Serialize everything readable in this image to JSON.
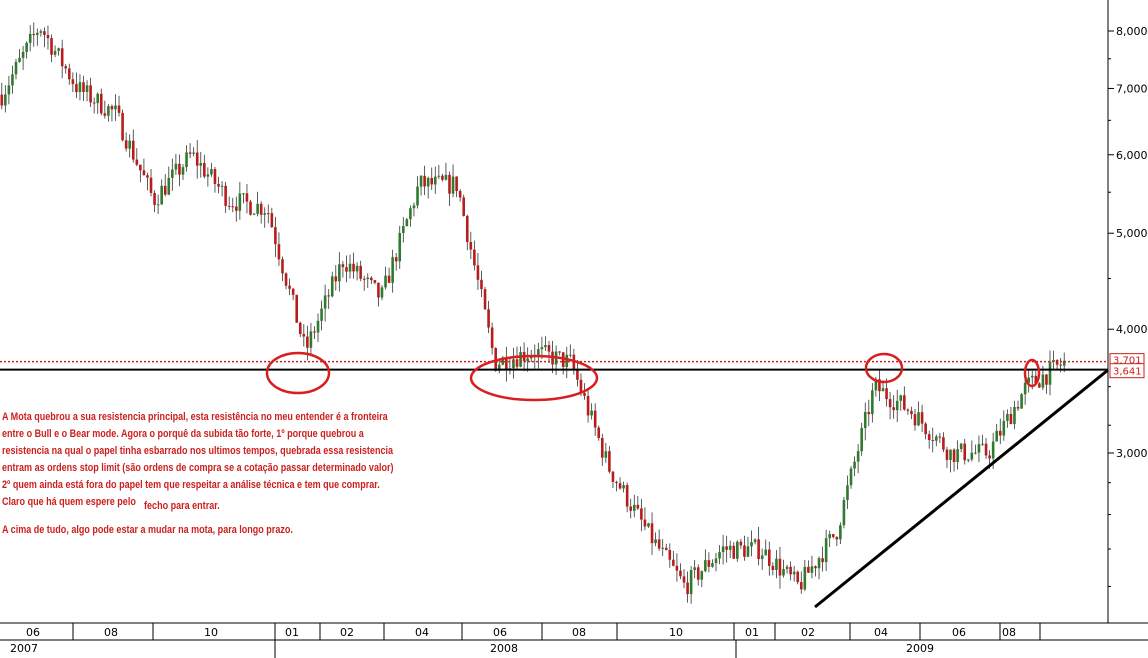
{
  "chart_data": {
    "type": "candlestick",
    "title": "",
    "y_scale": "log",
    "ylim": [
      2100,
      8400
    ],
    "y_ticks": [
      {
        "value": 8000,
        "label": "8,000"
      },
      {
        "value": 7000,
        "label": "7,000"
      },
      {
        "value": 6000,
        "label": "6,000"
      },
      {
        "value": 5000,
        "label": "5,000"
      },
      {
        "value": 4000,
        "label": "4,000"
      },
      {
        "value": 3000,
        "label": "3,000"
      }
    ],
    "x_months": [
      "06",
      "08",
      "10",
      "01",
      "02",
      "04",
      "06",
      "08",
      "10",
      "01",
      "02",
      "04",
      "06",
      "08"
    ],
    "x_years": [
      "2007",
      "2008",
      "2009"
    ],
    "resistance_level": 3641,
    "resistance_label": "3,641",
    "last_price_label": "3,701",
    "price_path": [
      {
        "date": "2007-05",
        "value": 6900
      },
      {
        "date": "2007-06",
        "value": 8100
      },
      {
        "date": "2007-07",
        "value": 7000
      },
      {
        "date": "2007-08",
        "value": 6600
      },
      {
        "date": "2007-09",
        "value": 5400
      },
      {
        "date": "2007-10",
        "value": 6000
      },
      {
        "date": "2007-11",
        "value": 5400
      },
      {
        "date": "2007-12",
        "value": 5300
      },
      {
        "date": "2008-01",
        "value": 3800
      },
      {
        "date": "2008-02",
        "value": 4700
      },
      {
        "date": "2008-03",
        "value": 4300
      },
      {
        "date": "2008-04",
        "value": 5600
      },
      {
        "date": "2008-05",
        "value": 5600
      },
      {
        "date": "2008-06",
        "value": 3700
      },
      {
        "date": "2008-07",
        "value": 3800
      },
      {
        "date": "2008-08",
        "value": 3700
      },
      {
        "date": "2008-09",
        "value": 2900
      },
      {
        "date": "2008-10",
        "value": 2500
      },
      {
        "date": "2008-11",
        "value": 2200
      },
      {
        "date": "2008-12",
        "value": 2400
      },
      {
        "date": "2009-01",
        "value": 2400
      },
      {
        "date": "2009-02",
        "value": 2200
      },
      {
        "date": "2009-03",
        "value": 2500
      },
      {
        "date": "2009-04",
        "value": 3500
      },
      {
        "date": "2009-05",
        "value": 3300
      },
      {
        "date": "2009-06",
        "value": 3000
      },
      {
        "date": "2009-07",
        "value": 3000
      },
      {
        "date": "2009-08",
        "value": 3500
      },
      {
        "date": "2009-09",
        "value": 3700
      }
    ]
  },
  "annotation": {
    "paragraph_lines": [
      "A Mota quebrou a sua resistencia principal, esta resistência no meu entender é a fronteira",
      "entre o Bull e o Bear mode. Agora o porquê da subida tão forte, 1º porque quebrou a",
      "resistencia na qual o papel tinha esbarrado nos ultimos tempos, quebrada essa resistencia",
      "entram as ordens stop limit (são ordens de compra se a cotação passar determinado valor)",
      "2º quem ainda está fora do papel tem que respeitar a análise técnica e tem que comprar."
    ],
    "last_line_a": "Claro que há quem espere pelo",
    "last_line_b": "fecho para entrar.",
    "conclusion": "A cima de tudo, algo pode estar a mudar na mota, para longo prazo."
  },
  "colors": {
    "up_candle": "#2f7a2f",
    "down_candle": "#b81c1c",
    "annotation": "#cc1f1f",
    "resistance_line": "#000000",
    "dotted_line": "#cc1f1f"
  }
}
